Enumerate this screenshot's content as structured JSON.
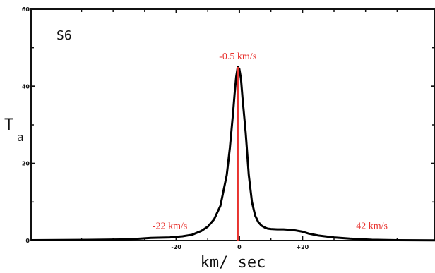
{
  "chart_data": {
    "type": "line",
    "panel_label": "S6",
    "xlabel": "km/ sec",
    "ylabel": "T",
    "ylabel_subscript": "a",
    "xlim": [
      -66,
      62
    ],
    "ylim": [
      0,
      60
    ],
    "x_ticks": [
      {
        "value": -20,
        "label": "-20"
      },
      {
        "value": 0,
        "label": "0"
      },
      {
        "value": 20,
        "label": "+20"
      }
    ],
    "y_ticks": [
      {
        "value": 0,
        "label": "0"
      },
      {
        "value": 20,
        "label": "20"
      },
      {
        "value": 40,
        "label": "40"
      },
      {
        "value": 60,
        "label": "60"
      }
    ],
    "series": [
      {
        "x": [
          -66,
          -45,
          -35,
          -28,
          -22,
          -18,
          -15,
          -12,
          -10,
          -8,
          -6,
          -4,
          -3,
          -2,
          -1.5,
          -1,
          -0.5,
          0,
          0.5,
          1,
          2,
          3,
          4,
          5,
          6,
          7,
          8,
          9,
          10,
          12,
          14,
          16,
          18,
          20,
          22,
          25,
          30,
          35,
          42,
          50,
          62
        ],
        "y": [
          0.1,
          0.2,
          0.3,
          0.7,
          0.8,
          1.1,
          1.5,
          2.5,
          3.6,
          5.5,
          9,
          17,
          24,
          33,
          38,
          42.5,
          45,
          44.5,
          42,
          37,
          28,
          17,
          10,
          6.5,
          4.8,
          3.9,
          3.4,
          3.1,
          3.0,
          2.9,
          2.9,
          2.8,
          2.6,
          2.3,
          1.8,
          1.3,
          0.8,
          0.5,
          0.2,
          0.1,
          0.05
        ],
        "color": "#000000"
      }
    ],
    "markers": [
      {
        "x": -0.5,
        "y": 45,
        "color": "#e8322e"
      }
    ],
    "annotations": [
      {
        "text": "-0.5 km/s",
        "x": -0.5,
        "y": 47,
        "color": "#e8322e"
      },
      {
        "text": "-22 km/s",
        "x": -22,
        "y": 3,
        "color": "#e8322e"
      },
      {
        "text": "42 km/s",
        "x": 42,
        "y": 3,
        "color": "#e8322e"
      }
    ],
    "colors": {
      "curve": "#000000",
      "marker": "#e8322e",
      "axis": "#111111"
    }
  }
}
